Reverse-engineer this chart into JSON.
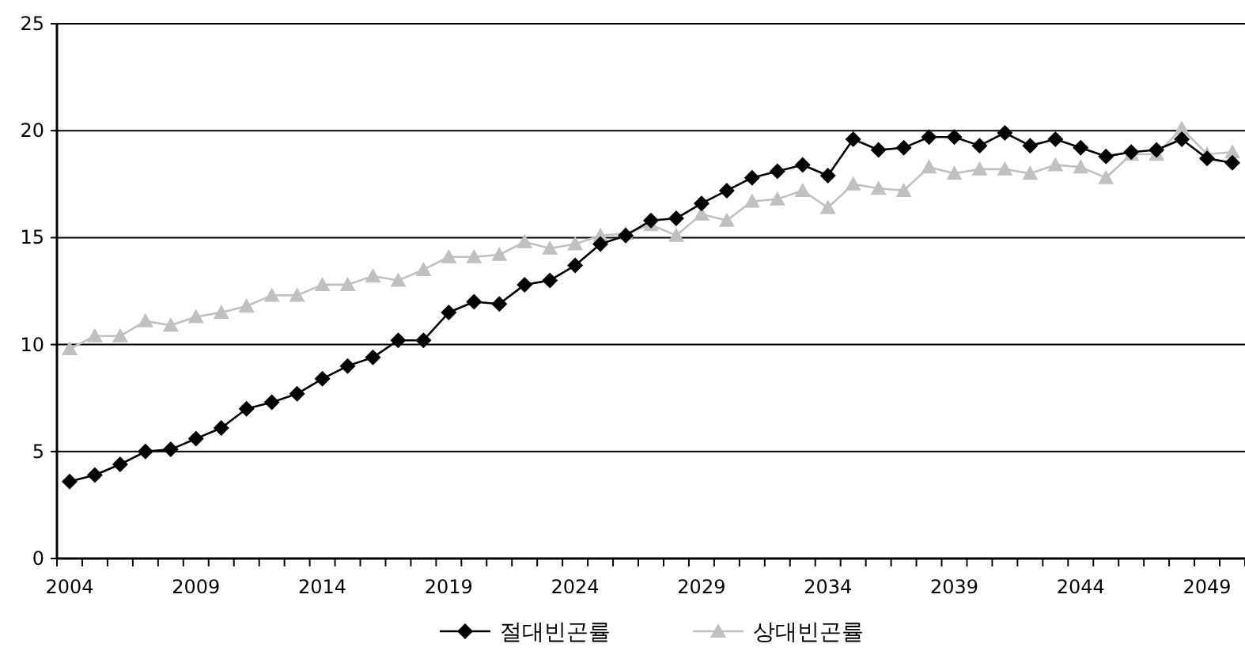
{
  "chart_data": {
    "type": "line",
    "categories": [
      "2004",
      null,
      null,
      null,
      null,
      "2009",
      null,
      null,
      null,
      null,
      "2014",
      null,
      null,
      null,
      null,
      "2019",
      null,
      null,
      null,
      null,
      "2024",
      null,
      null,
      null,
      null,
      "2029",
      null,
      null,
      null,
      null,
      "2034",
      null,
      null,
      null,
      null,
      "2039",
      null,
      null,
      null,
      null,
      "2044",
      null,
      null,
      null,
      null,
      "2049",
      null
    ],
    "series": [
      {
        "name": "절대빈곤률",
        "color": "#000000",
        "marker": "diamond",
        "values": [
          3.6,
          3.9,
          4.4,
          5.0,
          5.1,
          5.6,
          6.1,
          7.0,
          7.3,
          7.7,
          8.4,
          9.0,
          9.4,
          10.2,
          10.2,
          11.5,
          12.0,
          11.9,
          12.8,
          13.0,
          13.7,
          14.7,
          15.1,
          15.8,
          15.9,
          16.6,
          17.2,
          17.8,
          18.1,
          18.4,
          17.9,
          19.6,
          19.1,
          19.2,
          19.7,
          19.7,
          19.3,
          19.9,
          19.3,
          19.6,
          19.2,
          18.8,
          19.0,
          19.1,
          19.6,
          18.7,
          18.5
        ]
      },
      {
        "name": "상대빈곤률",
        "color": "#c0c0c0",
        "marker": "triangle",
        "values": [
          9.8,
          10.4,
          10.4,
          11.1,
          10.9,
          11.3,
          11.5,
          11.8,
          12.3,
          12.3,
          12.8,
          12.8,
          13.2,
          13.0,
          13.5,
          14.1,
          14.1,
          14.2,
          14.8,
          14.5,
          14.7,
          15.1,
          15.2,
          15.6,
          15.1,
          16.1,
          15.8,
          16.7,
          16.8,
          17.2,
          16.4,
          17.5,
          17.3,
          17.2,
          18.3,
          18.0,
          18.2,
          18.2,
          18.0,
          18.4,
          18.3,
          17.8,
          18.9,
          18.9,
          20.1,
          18.9,
          19.0
        ]
      }
    ],
    "ylim": [
      0,
      25
    ],
    "yticks": [
      0,
      5,
      10,
      15,
      20,
      25
    ],
    "grid": "y",
    "legend": "bottom"
  }
}
